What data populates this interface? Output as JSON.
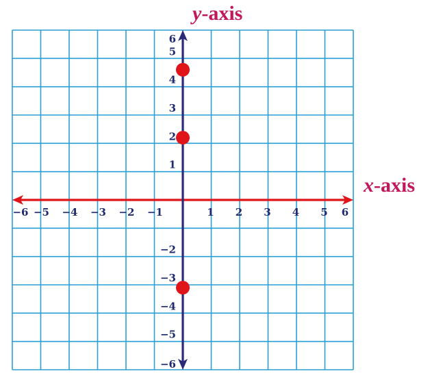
{
  "chart_data": {
    "type": "scatter",
    "title": "",
    "xlabel": {
      "var": "x",
      "rest": "-axis"
    },
    "ylabel": {
      "var": "y",
      "rest": "-axis"
    },
    "xlim": [
      -6,
      6
    ],
    "ylim": [
      -6,
      6
    ],
    "grid": true,
    "x_ticks": [
      "−6",
      "−5",
      "−4",
      "−3",
      "−2",
      "−1",
      "1",
      "2",
      "3",
      "4",
      "5",
      "6"
    ],
    "y_ticks": [
      "6",
      "5",
      "4",
      "3",
      "2",
      "1",
      "−2",
      "−3",
      "−4",
      "−5",
      "−6"
    ],
    "points": [
      {
        "x": 0,
        "y": 4.6
      },
      {
        "x": 0,
        "y": 2.2
      },
      {
        "x": 0,
        "y": -3.1
      }
    ],
    "colors": {
      "grid": "#2a9fd6",
      "x_axis": "#e0151a",
      "y_axis": "#2b2a7a",
      "points": "#e0151a",
      "labels": "#c2185b",
      "ticks": "#1f2a6e"
    }
  }
}
